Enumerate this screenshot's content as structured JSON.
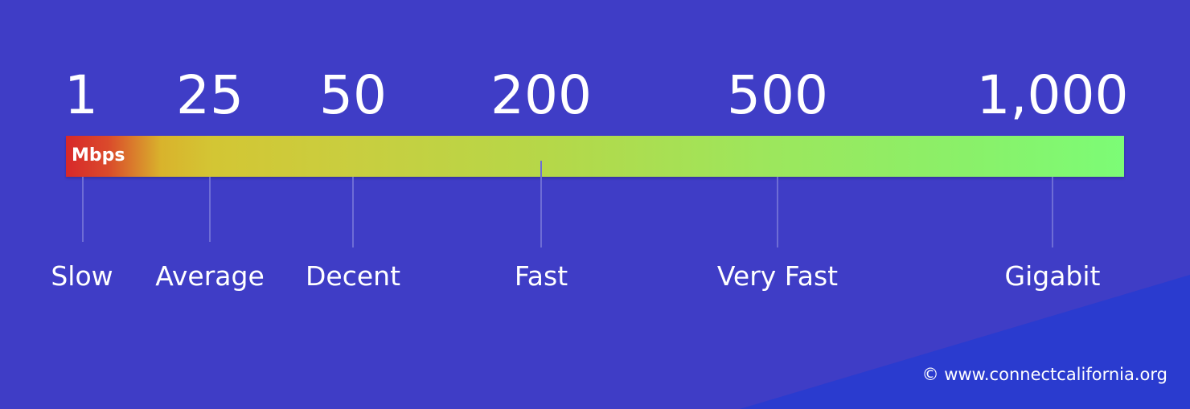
{
  "scale": {
    "unit": "Mbps",
    "tiers": [
      {
        "value": "1",
        "label": "Slow"
      },
      {
        "value": "25",
        "label": "Average"
      },
      {
        "value": "50",
        "label": "Decent"
      },
      {
        "value": "200",
        "label": "Fast"
      },
      {
        "value": "500",
        "label": "Very Fast"
      },
      {
        "value": "1,000",
        "label": "Gigabit"
      }
    ]
  },
  "gradient_colors": {
    "start": "#d8282a",
    "end": "#7cfc76"
  },
  "background_color": "#3f3dc6",
  "accent_color": "#2a3ccf",
  "footer": {
    "copyright": "© www.connectcalifornia.org"
  }
}
